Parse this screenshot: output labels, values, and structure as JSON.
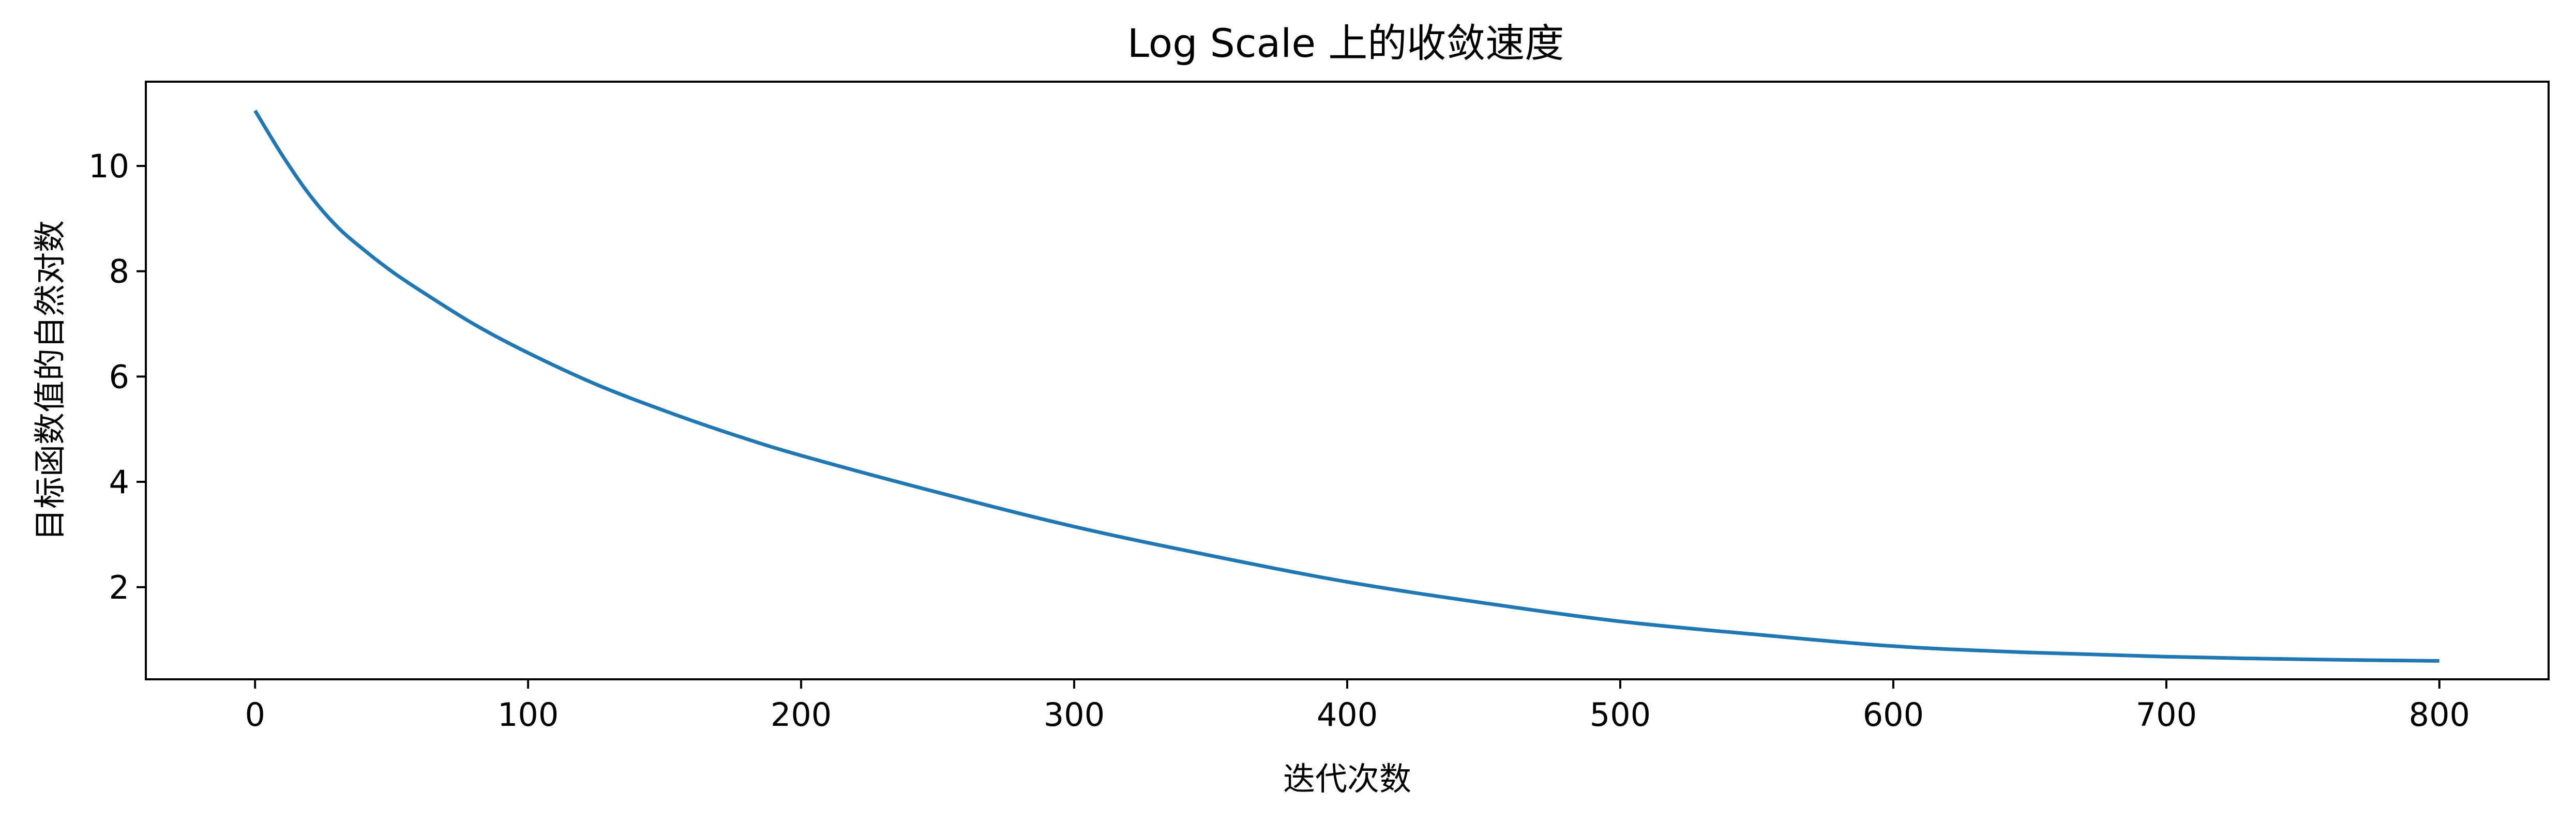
{
  "chart_data": {
    "type": "line",
    "title": "Log Scale 上的收敛速度",
    "xlabel": "迭代次数",
    "ylabel": "目标函数值的自然对数",
    "xlim": [
      -40,
      840
    ],
    "ylim": [
      0.25,
      11.6
    ],
    "xticks": [
      0,
      100,
      200,
      300,
      400,
      500,
      600,
      700,
      800
    ],
    "xtick_labels": [
      "0",
      "100",
      "200",
      "300",
      "400",
      "500",
      "600",
      "700",
      "800"
    ],
    "yticks": [
      2,
      4,
      6,
      8,
      10
    ],
    "ytick_labels": [
      "2",
      "4",
      "6",
      "8",
      "10"
    ],
    "grid": false,
    "legend": "none",
    "series": [
      {
        "color": "#1f77b4",
        "x": [
          0,
          10,
          20,
          30,
          40,
          50,
          60,
          80,
          100,
          125,
          150,
          175,
          200,
          250,
          300,
          350,
          400,
          450,
          500,
          550,
          600,
          650,
          700,
          750,
          800
        ],
        "values": [
          11.05,
          10.2,
          9.45,
          8.85,
          8.4,
          8.0,
          7.65,
          7.0,
          6.45,
          5.85,
          5.35,
          4.9,
          4.5,
          3.8,
          3.15,
          2.6,
          2.1,
          1.7,
          1.35,
          1.1,
          0.88,
          0.76,
          0.68,
          0.63,
          0.6
        ]
      }
    ]
  }
}
